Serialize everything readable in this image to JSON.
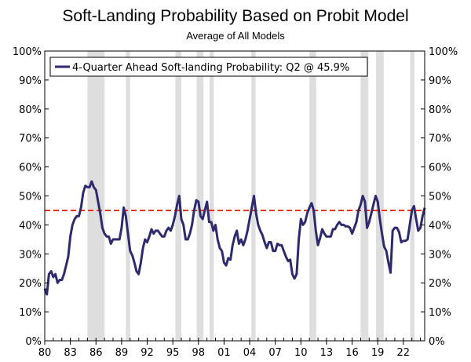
{
  "chart_data": {
    "type": "line",
    "title": "Soft-Landing Probability Based on Probit Model",
    "subtitle": "Average of All Models",
    "xlabel": "",
    "ylabel": "",
    "ylim": [
      0,
      100
    ],
    "xlim": [
      1980,
      2024.5
    ],
    "y_ticks": [
      "0%",
      "10%",
      "20%",
      "30%",
      "40%",
      "50%",
      "60%",
      "70%",
      "80%",
      "90%",
      "100%"
    ],
    "x_ticks": [
      {
        "year": 1980,
        "label": "80"
      },
      {
        "year": 1983,
        "label": "83"
      },
      {
        "year": 1986,
        "label": "86"
      },
      {
        "year": 1989,
        "label": "89"
      },
      {
        "year": 1992,
        "label": "92"
      },
      {
        "year": 1995,
        "label": "95"
      },
      {
        "year": 1998,
        "label": "98"
      },
      {
        "year": 2001,
        "label": "01"
      },
      {
        "year": 2004,
        "label": "04"
      },
      {
        "year": 2007,
        "label": "07"
      },
      {
        "year": 2010,
        "label": "10"
      },
      {
        "year": 2013,
        "label": "13"
      },
      {
        "year": 2016,
        "label": "16"
      },
      {
        "year": 2019,
        "label": "19"
      },
      {
        "year": 2022,
        "label": "22"
      }
    ],
    "grid": false,
    "legend_position": "top-left",
    "colors": {
      "line": "#2e2a6e",
      "reference": "#e8341c",
      "shade": "#dedede",
      "axis": "#000000"
    },
    "reference_line": {
      "value": 45,
      "style": "dashed"
    },
    "shaded_periods": [
      [
        1985.0,
        1987.0
      ],
      [
        1989.5,
        1990.0
      ],
      [
        1995.3,
        1996.0
      ],
      [
        1997.8,
        1998.6
      ],
      [
        1999.3,
        1999.8
      ],
      [
        2004.2,
        2004.7
      ],
      [
        2011.0,
        2011.8
      ],
      [
        2017.0,
        2017.9
      ],
      [
        2018.8,
        2019.7
      ],
      [
        2022.8,
        2023.3
      ]
    ],
    "series": [
      {
        "name": "4-Quarter Ahead Soft-landing Probability: Q2 @ 45.9%",
        "points": [
          [
            1980.0,
            18
          ],
          [
            1980.25,
            16
          ],
          [
            1980.5,
            23
          ],
          [
            1980.75,
            24
          ],
          [
            1981.0,
            22
          ],
          [
            1981.25,
            23
          ],
          [
            1981.5,
            20
          ],
          [
            1981.75,
            21
          ],
          [
            1982.0,
            21
          ],
          [
            1982.25,
            23
          ],
          [
            1982.5,
            26
          ],
          [
            1982.75,
            29
          ],
          [
            1983.0,
            36
          ],
          [
            1983.25,
            40
          ],
          [
            1983.5,
            42
          ],
          [
            1983.75,
            43
          ],
          [
            1984.0,
            43
          ],
          [
            1984.25,
            46
          ],
          [
            1984.5,
            51
          ],
          [
            1984.75,
            53.5
          ],
          [
            1985.0,
            53
          ],
          [
            1985.25,
            53
          ],
          [
            1985.5,
            55
          ],
          [
            1985.75,
            53
          ],
          [
            1986.0,
            52
          ],
          [
            1986.25,
            48
          ],
          [
            1986.5,
            44
          ],
          [
            1986.75,
            39
          ],
          [
            1987.0,
            37
          ],
          [
            1987.25,
            36
          ],
          [
            1987.5,
            36
          ],
          [
            1987.75,
            33.5
          ],
          [
            1988.0,
            35
          ],
          [
            1988.25,
            35
          ],
          [
            1988.5,
            35
          ],
          [
            1988.75,
            35
          ],
          [
            1989.0,
            39
          ],
          [
            1989.25,
            46
          ],
          [
            1989.5,
            43
          ],
          [
            1989.75,
            37
          ],
          [
            1990.0,
            31
          ],
          [
            1990.25,
            29.5
          ],
          [
            1990.5,
            27
          ],
          [
            1990.75,
            24
          ],
          [
            1991.0,
            23
          ],
          [
            1991.25,
            27
          ],
          [
            1991.5,
            32
          ],
          [
            1991.75,
            35
          ],
          [
            1992.0,
            34
          ],
          [
            1992.25,
            36
          ],
          [
            1992.5,
            38.5
          ],
          [
            1992.75,
            37
          ],
          [
            1993.0,
            38
          ],
          [
            1993.25,
            38
          ],
          [
            1993.5,
            37
          ],
          [
            1993.75,
            36
          ],
          [
            1994.0,
            36
          ],
          [
            1994.25,
            38
          ],
          [
            1994.5,
            39
          ],
          [
            1994.75,
            38
          ],
          [
            1995.0,
            40
          ],
          [
            1995.25,
            43
          ],
          [
            1995.5,
            47
          ],
          [
            1995.75,
            50
          ],
          [
            1996.0,
            42
          ],
          [
            1996.25,
            40
          ],
          [
            1996.5,
            35
          ],
          [
            1996.75,
            35
          ],
          [
            1997.0,
            37
          ],
          [
            1997.25,
            40
          ],
          [
            1997.5,
            45
          ],
          [
            1997.75,
            48.5
          ],
          [
            1998.0,
            48
          ],
          [
            1998.25,
            43
          ],
          [
            1998.5,
            42
          ],
          [
            1998.75,
            45
          ],
          [
            1999.0,
            48
          ],
          [
            1999.25,
            41
          ],
          [
            1999.5,
            41
          ],
          [
            1999.75,
            38
          ],
          [
            2000.0,
            40
          ],
          [
            2000.25,
            35
          ],
          [
            2000.5,
            32
          ],
          [
            2000.75,
            31
          ],
          [
            2001.0,
            27
          ],
          [
            2001.25,
            26
          ],
          [
            2001.5,
            28.5
          ],
          [
            2001.75,
            28
          ],
          [
            2002.0,
            33
          ],
          [
            2002.25,
            36
          ],
          [
            2002.5,
            38
          ],
          [
            2002.75,
            33.5
          ],
          [
            2003.0,
            35
          ],
          [
            2003.25,
            33
          ],
          [
            2003.5,
            35
          ],
          [
            2003.75,
            38
          ],
          [
            2004.0,
            42
          ],
          [
            2004.25,
            46
          ],
          [
            2004.5,
            50
          ],
          [
            2004.75,
            44
          ],
          [
            2005.0,
            40
          ],
          [
            2005.25,
            38
          ],
          [
            2005.5,
            36.5
          ],
          [
            2005.75,
            34
          ],
          [
            2006.0,
            32
          ],
          [
            2006.25,
            34
          ],
          [
            2006.5,
            34
          ],
          [
            2006.75,
            31
          ],
          [
            2007.0,
            31
          ],
          [
            2007.25,
            33.5
          ],
          [
            2007.5,
            33
          ],
          [
            2007.75,
            33
          ],
          [
            2008.0,
            31
          ],
          [
            2008.25,
            29
          ],
          [
            2008.5,
            27.5
          ],
          [
            2008.75,
            28
          ],
          [
            2009.0,
            23
          ],
          [
            2009.25,
            21.5
          ],
          [
            2009.5,
            23
          ],
          [
            2009.75,
            35
          ],
          [
            2010.0,
            42
          ],
          [
            2010.25,
            40
          ],
          [
            2010.5,
            41
          ],
          [
            2010.75,
            44
          ],
          [
            2011.0,
            46
          ],
          [
            2011.25,
            47.5
          ],
          [
            2011.5,
            45
          ],
          [
            2011.75,
            38
          ],
          [
            2012.0,
            33
          ],
          [
            2012.25,
            35.5
          ],
          [
            2012.5,
            38.5
          ],
          [
            2012.75,
            37
          ],
          [
            2013.0,
            36
          ],
          [
            2013.25,
            36
          ],
          [
            2013.5,
            36
          ],
          [
            2013.75,
            38.5
          ],
          [
            2014.0,
            38.5
          ],
          [
            2014.25,
            40
          ],
          [
            2014.5,
            41
          ],
          [
            2014.75,
            40
          ],
          [
            2015.0,
            40
          ],
          [
            2015.25,
            39.5
          ],
          [
            2015.5,
            39.5
          ],
          [
            2015.75,
            39
          ],
          [
            2016.0,
            37
          ],
          [
            2016.25,
            39
          ],
          [
            2016.5,
            41
          ],
          [
            2016.75,
            45
          ],
          [
            2017.0,
            47
          ],
          [
            2017.25,
            50
          ],
          [
            2017.5,
            48
          ],
          [
            2017.75,
            39
          ],
          [
            2018.0,
            41
          ],
          [
            2018.25,
            44
          ],
          [
            2018.5,
            47
          ],
          [
            2018.75,
            50
          ],
          [
            2019.0,
            48
          ],
          [
            2019.25,
            42
          ],
          [
            2019.5,
            37
          ],
          [
            2019.75,
            32.5
          ],
          [
            2020.0,
            31
          ],
          [
            2020.25,
            27
          ],
          [
            2020.5,
            23.5
          ],
          [
            2020.75,
            38
          ],
          [
            2021.0,
            39
          ],
          [
            2021.25,
            39
          ],
          [
            2021.5,
            37.5
          ],
          [
            2021.75,
            34
          ],
          [
            2022.0,
            34.5
          ],
          [
            2022.25,
            34.5
          ],
          [
            2022.5,
            35
          ],
          [
            2022.75,
            40
          ],
          [
            2023.0,
            45
          ],
          [
            2023.25,
            46.5
          ],
          [
            2023.5,
            42
          ],
          [
            2023.75,
            38
          ],
          [
            2024.0,
            39
          ],
          [
            2024.25,
            43
          ],
          [
            2024.5,
            45.9
          ]
        ]
      }
    ]
  }
}
